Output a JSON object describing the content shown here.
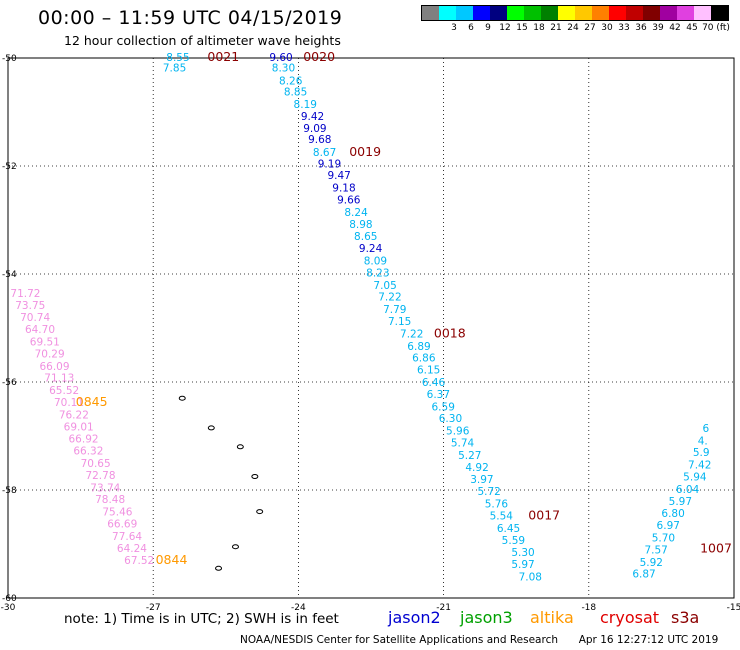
{
  "header": {
    "title": "00:00 – 11:59 UTC 04/15/2019",
    "subtitle": "12 hour collection of altimeter wave heights"
  },
  "color_scale": [
    {
      "label": "",
      "color": "#808080"
    },
    {
      "label": "3",
      "color": "#00ffff"
    },
    {
      "label": "6",
      "color": "#00c8ff"
    },
    {
      "label": "9",
      "color": "#0000ff"
    },
    {
      "label": "12",
      "color": "#000080"
    },
    {
      "label": "15",
      "color": "#00ff00"
    },
    {
      "label": "18",
      "color": "#00c000"
    },
    {
      "label": "21",
      "color": "#008000"
    },
    {
      "label": "24",
      "color": "#ffff00"
    },
    {
      "label": "27",
      "color": "#ffc800"
    },
    {
      "label": "30",
      "color": "#ff8000"
    },
    {
      "label": "33",
      "color": "#ff0000"
    },
    {
      "label": "36",
      "color": "#c00000"
    },
    {
      "label": "39",
      "color": "#800000"
    },
    {
      "label": "42",
      "color": "#a000a0"
    },
    {
      "label": "45",
      "color": "#e040e0"
    },
    {
      "label": "70 (ft)",
      "color": "#ffc0ff"
    },
    {
      "label": "",
      "color": "#000000"
    }
  ],
  "map": {
    "lon_ticks": [
      "-30",
      "-27",
      "-24",
      "-21",
      "-18",
      "-15"
    ],
    "lat_ticks": [
      "-50",
      "-52",
      "-54",
      "-56",
      "-58",
      "-60"
    ],
    "lon_range": [
      -30,
      -15
    ],
    "lat_range": [
      -60,
      -50
    ]
  },
  "tracks": [
    {
      "name": "track_a",
      "color": "#00b4f0",
      "points": [
        {
          "v": "8.55",
          "lon": -26.73,
          "lat": -49.98
        },
        {
          "v": "7.85",
          "lon": -26.8,
          "lat": -50.18
        }
      ],
      "time_labels": [
        {
          "t": "0021",
          "lon": -25.88,
          "lat": -49.98
        }
      ]
    },
    {
      "name": "track_b",
      "points": [
        {
          "v": "9.60",
          "lon": -24.6,
          "lat": -49.98,
          "c": "#0000c8"
        },
        {
          "v": "8.30",
          "lon": -24.55,
          "lat": -50.18,
          "c": "#00b4f0"
        },
        {
          "v": "8.26",
          "lon": -24.4,
          "lat": -50.42,
          "c": "#00b4f0"
        },
        {
          "v": "8.85",
          "lon": -24.3,
          "lat": -50.62,
          "c": "#00b4f0"
        },
        {
          "v": "8.19",
          "lon": -24.1,
          "lat": -50.85,
          "c": "#00b4f0"
        },
        {
          "v": "9.42",
          "lon": -23.95,
          "lat": -51.07,
          "c": "#0000c8"
        },
        {
          "v": "9.09",
          "lon": -23.9,
          "lat": -51.3,
          "c": "#0000c8"
        },
        {
          "v": "9.68",
          "lon": -23.8,
          "lat": -51.5,
          "c": "#0000c8"
        },
        {
          "v": "8.67",
          "lon": -23.7,
          "lat": -51.74,
          "c": "#00b4f0"
        },
        {
          "v": "9.19",
          "lon": -23.6,
          "lat": -51.95,
          "c": "#0000c8"
        },
        {
          "v": "9.47",
          "lon": -23.4,
          "lat": -52.17,
          "c": "#0000c8"
        },
        {
          "v": "9.18",
          "lon": -23.3,
          "lat": -52.4,
          "c": "#0000c8"
        },
        {
          "v": "9.66",
          "lon": -23.2,
          "lat": -52.62,
          "c": "#0000c8"
        },
        {
          "v": "8.24",
          "lon": -23.05,
          "lat": -52.85,
          "c": "#00b4f0"
        },
        {
          "v": "8.98",
          "lon": -22.95,
          "lat": -53.07,
          "c": "#00b4f0"
        },
        {
          "v": "8.65",
          "lon": -22.85,
          "lat": -53.3,
          "c": "#00b4f0"
        },
        {
          "v": "9.24",
          "lon": -22.75,
          "lat": -53.52,
          "c": "#0000c8"
        },
        {
          "v": "8.09",
          "lon": -22.65,
          "lat": -53.75,
          "c": "#00b4f0"
        },
        {
          "v": "8.23",
          "lon": -22.6,
          "lat": -53.97,
          "c": "#00b4f0"
        },
        {
          "v": "7.05",
          "lon": -22.45,
          "lat": -54.2,
          "c": "#00b4f0"
        },
        {
          "v": "7.22",
          "lon": -22.35,
          "lat": -54.42,
          "c": "#00b4f0"
        },
        {
          "v": "7.79",
          "lon": -22.25,
          "lat": -54.65,
          "c": "#00b4f0"
        },
        {
          "v": "7.15",
          "lon": -22.15,
          "lat": -54.87,
          "c": "#00b4f0"
        },
        {
          "v": "7.22",
          "lon": -21.9,
          "lat": -55.1,
          "c": "#00b4f0"
        },
        {
          "v": "6.89",
          "lon": -21.75,
          "lat": -55.33,
          "c": "#00b4f0"
        },
        {
          "v": "6.86",
          "lon": -21.65,
          "lat": -55.55,
          "c": "#00b4f0"
        },
        {
          "v": "6.15",
          "lon": -21.55,
          "lat": -55.77,
          "c": "#00b4f0"
        },
        {
          "v": "6.46",
          "lon": -21.45,
          "lat": -56.0,
          "c": "#00b4f0"
        },
        {
          "v": "6.37",
          "lon": -21.35,
          "lat": -56.22,
          "c": "#00b4f0"
        },
        {
          "v": "6.59",
          "lon": -21.25,
          "lat": -56.45,
          "c": "#00b4f0"
        },
        {
          "v": "6.30",
          "lon": -21.1,
          "lat": -56.67,
          "c": "#00b4f0"
        },
        {
          "v": "5.96",
          "lon": -20.95,
          "lat": -56.9,
          "c": "#00b4f0"
        },
        {
          "v": "5.74",
          "lon": -20.85,
          "lat": -57.12,
          "c": "#00b4f0"
        },
        {
          "v": "5.27",
          "lon": -20.7,
          "lat": -57.35,
          "c": "#00b4f0"
        },
        {
          "v": "4.92",
          "lon": -20.55,
          "lat": -57.57,
          "c": "#00b4f0"
        },
        {
          "v": "3.97",
          "lon": -20.45,
          "lat": -57.8,
          "c": "#00b4f0"
        },
        {
          "v": "5.72",
          "lon": -20.3,
          "lat": -58.02,
          "c": "#00b4f0"
        },
        {
          "v": "5.76",
          "lon": -20.15,
          "lat": -58.25,
          "c": "#00b4f0"
        },
        {
          "v": "5.54",
          "lon": -20.05,
          "lat": -58.47,
          "c": "#00b4f0"
        },
        {
          "v": "6.45",
          "lon": -19.9,
          "lat": -58.7,
          "c": "#00b4f0"
        },
        {
          "v": "5.59",
          "lon": -19.8,
          "lat": -58.93,
          "c": "#00b4f0"
        },
        {
          "v": "5.30",
          "lon": -19.6,
          "lat": -59.15,
          "c": "#00b4f0"
        },
        {
          "v": "5.97",
          "lon": -19.6,
          "lat": -59.37,
          "c": "#00b4f0"
        },
        {
          "v": "7.08",
          "lon": -19.45,
          "lat": -59.6,
          "c": "#00b4f0"
        }
      ],
      "time_labels": [
        {
          "t": "0020",
          "lon": -23.9,
          "lat": -49.98
        },
        {
          "t": "0019",
          "lon": -22.95,
          "lat": -51.74
        },
        {
          "t": "0018",
          "lon": -21.2,
          "lat": -55.1
        },
        {
          "t": "0017",
          "lon": -19.25,
          "lat": -58.47
        }
      ]
    },
    {
      "name": "track_c",
      "color": "#f090e0",
      "points": [
        {
          "v": "71.72",
          "lon": -29.95,
          "lat": -54.35
        },
        {
          "v": "73.75",
          "lon": -29.85,
          "lat": -54.57
        },
        {
          "v": "70.74",
          "lon": -29.75,
          "lat": -54.8
        },
        {
          "v": "64.70",
          "lon": -29.65,
          "lat": -55.02
        },
        {
          "v": "69.51",
          "lon": -29.55,
          "lat": -55.25
        },
        {
          "v": "70.29",
          "lon": -29.45,
          "lat": -55.47
        },
        {
          "v": "66.09",
          "lon": -29.35,
          "lat": -55.7
        },
        {
          "v": "71.13",
          "lon": -29.25,
          "lat": -55.92
        },
        {
          "v": "65.52",
          "lon": -29.15,
          "lat": -56.15
        },
        {
          "v": "70.11",
          "lon": -29.05,
          "lat": -56.37
        },
        {
          "v": "76.22",
          "lon": -28.95,
          "lat": -56.6
        },
        {
          "v": "69.01",
          "lon": -28.85,
          "lat": -56.82
        },
        {
          "v": "66.92",
          "lon": -28.75,
          "lat": -57.05
        },
        {
          "v": "66.32",
          "lon": -28.65,
          "lat": -57.27
        },
        {
          "v": "70.65",
          "lon": -28.5,
          "lat": -57.5
        },
        {
          "v": "72.78",
          "lon": -28.4,
          "lat": -57.72
        },
        {
          "v": "73.74",
          "lon": -28.3,
          "lat": -57.95
        },
        {
          "v": "78.48",
          "lon": -28.2,
          "lat": -58.17
        },
        {
          "v": "75.46",
          "lon": -28.05,
          "lat": -58.4
        },
        {
          "v": "66.69",
          "lon": -27.95,
          "lat": -58.62
        },
        {
          "v": "77.64",
          "lon": -27.85,
          "lat": -58.85
        },
        {
          "v": "64.24",
          "lon": -27.75,
          "lat": -59.07
        },
        {
          "v": "67.52",
          "lon": -27.6,
          "lat": -59.3
        }
      ],
      "time_labels": [
        {
          "t": "0845",
          "lon": -28.6,
          "lat": -56.37
        },
        {
          "t": "0844",
          "lon": -26.95,
          "lat": -59.3
        }
      ]
    },
    {
      "name": "track_d",
      "color": "#00b4f0",
      "points": [
        {
          "v": "6.87",
          "lon": -17.1,
          "lat": -59.55
        },
        {
          "v": "5.92",
          "lon": -16.95,
          "lat": -59.33
        },
        {
          "v": "7.57",
          "lon": -16.85,
          "lat": -59.1
        },
        {
          "v": "5.70",
          "lon": -16.7,
          "lat": -58.88
        },
        {
          "v": "6.97",
          "lon": -16.6,
          "lat": -58.65
        },
        {
          "v": "6.80",
          "lon": -16.5,
          "lat": -58.43
        },
        {
          "v": "5.97",
          "lon": -16.35,
          "lat": -58.2
        },
        {
          "v": "6.04",
          "lon": -16.2,
          "lat": -57.98
        },
        {
          "v": "5.94",
          "lon": -16.05,
          "lat": -57.75
        },
        {
          "v": "7.42",
          "lon": -15.95,
          "lat": -57.53
        },
        {
          "v": "5.9",
          "lon": -15.85,
          "lat": -57.3
        },
        {
          "v": "4.",
          "lon": -15.75,
          "lat": -57.08
        },
        {
          "v": "6",
          "lon": -15.65,
          "lat": -56.85
        }
      ],
      "time_labels": [
        {
          "t": "1007",
          "lon": -15.7,
          "lat": -59.08
        }
      ]
    }
  ],
  "time_label_color": "#8b0000",
  "orange_label_color": "#ff9900",
  "islands": [
    {
      "lon": -26.4,
      "lat": -56.3
    },
    {
      "lon": -25.8,
      "lat": -56.85
    },
    {
      "lon": -25.2,
      "lat": -57.2
    },
    {
      "lon": -24.9,
      "lat": -57.75
    },
    {
      "lon": -24.8,
      "lat": -58.4
    },
    {
      "lon": -25.3,
      "lat": -59.05
    },
    {
      "lon": -25.65,
      "lat": -59.45
    }
  ],
  "footer": {
    "note": "note: 1) Time is in UTC; 2) SWH is in feet",
    "legend": [
      {
        "label": "jason2",
        "color": "#0000d0"
      },
      {
        "label": "jason3",
        "color": "#00a000"
      },
      {
        "label": "altika",
        "color": "#ff9900"
      },
      {
        "label": "cryosat",
        "color": "#e00000"
      },
      {
        "label": "s3a",
        "color": "#8b0000"
      }
    ],
    "credit": "NOAA/NESDIS Center for Satellite Applications and Research",
    "timestamp": "Apr 16 12:27:12 UTC 2019"
  }
}
